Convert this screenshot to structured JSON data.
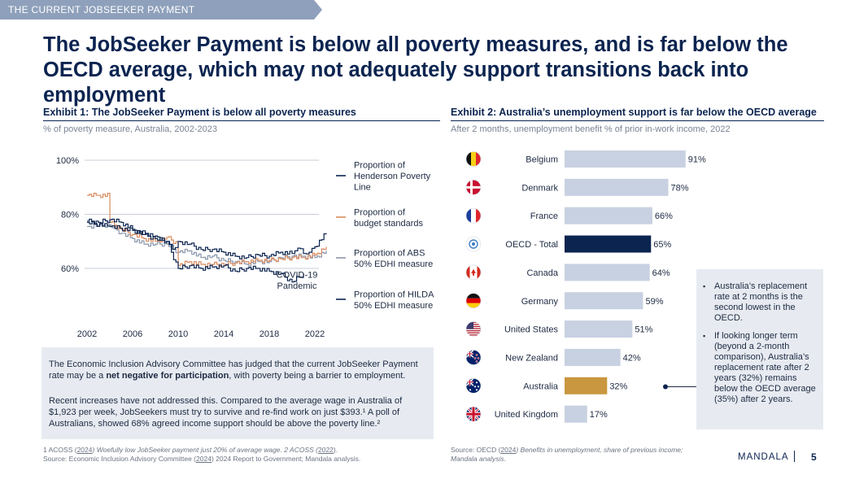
{
  "section_tag": "THE CURRENT JOBSEEKER PAYMENT",
  "headline": "The JobSeeker Payment is below all poverty measures, and is far below the OECD average, which may not adequately support transitions back into employment",
  "colors": {
    "navy": "#0b2450",
    "orange": "#d98a5e",
    "grey": "#8a97ab",
    "bar": "#c8d1e1",
    "highlight_oecd": "#0b2450",
    "highlight_aus": "#c9973f"
  },
  "exhibit1": {
    "title": "Exhibit 1: The JobSeeker Payment is below all poverty measures",
    "subtitle": "% of poverty measure, Australia, 2002-2023",
    "textbox": {
      "para1_pre": "The Economic Inclusion Advisory Committee has judged that the current JobSeeker Payment rate may be a ",
      "para1_bold": "net negative for participation",
      "para1_post": ", with poverty being a barrier to employment.",
      "para2": "Recent increases have not addressed this. Compared to the average wage in Australia of $1,923 per week, JobSeekers must try to survive and re-find work on just $393.¹ A poll of Australians, showed 68% agreed income support should be above the poverty line.²"
    },
    "footnote1_a": "1 ACOSS (",
    "footnote1_link1": "2024",
    "footnote1_b": ") Woefully low JobSeeker payment just 20% of average wage. 2 ACOSS (",
    "footnote1_link2": "2022",
    "footnote1_c": ").",
    "footnote2_a": "Source: Economic Inclusion Advisory Committee (",
    "footnote2_link": "2024",
    "footnote2_b": ") 2024 Report to Government; Mandala analysis."
  },
  "exhibit2": {
    "title": "Exhibit 2: Australia’s unemployment support is far below the OECD average",
    "subtitle": "After 2 months, unemployment benefit % of prior in-work income, 2022",
    "callout": [
      "Australia’s replacement rate at 2 months is the second lowest in the OECD.",
      "If looking longer term (beyond a 2-month comparison), Australia’s replacement rate after 2 years (32%) remains below the OECD average (35%) after 2 years."
    ],
    "footnote_a": "Source: OECD (",
    "footnote_link": "2024",
    "footnote_b": ") Benefits in unemployment, share of previous income; Mandala analysis."
  },
  "footer": {
    "brand": "MANDALA",
    "page": "5"
  },
  "chart_data": [
    {
      "type": "line",
      "title": "Exhibit 1: The JobSeeker Payment is below all poverty measures",
      "ylabel": "% of poverty measure",
      "xlim": [
        2002,
        2023
      ],
      "ylim": [
        50,
        100
      ],
      "yticks": [
        100,
        80,
        60
      ],
      "ytick_labels": [
        "100%",
        "80%",
        "60%"
      ],
      "xticks": [
        2002,
        2006,
        2010,
        2014,
        2018,
        2022
      ],
      "annotation": {
        "text_line1": "COVID-19",
        "text_line2": "Pandemic",
        "x": 2020,
        "y": 53
      },
      "series": [
        {
          "name": "Proportion of Henderson Poverty Line",
          "legend": [
            "Proportion of",
            "Henderson Poverty",
            "Line"
          ],
          "color": "#0b2450",
          "x": [
            2002,
            2003,
            2004,
            2005,
            2006,
            2007,
            2008,
            2009,
            2009.5,
            2010,
            2011,
            2012,
            2013,
            2014,
            2015,
            2016,
            2017,
            2018,
            2019,
            2020,
            2020.5,
            2021,
            2021.5,
            2022,
            2023
          ],
          "y": [
            77.5,
            77,
            78,
            77,
            74.5,
            72.5,
            71,
            70,
            67,
            70,
            69,
            67,
            67,
            66,
            64.5,
            64,
            65,
            64.5,
            66,
            65.5,
            67.5,
            65.5,
            66,
            68,
            73
          ]
        },
        {
          "name": "Proportion of budget standards",
          "legend": [
            "Proportion of",
            "budget standards"
          ],
          "color": "#d98a5e",
          "x": [
            2002,
            2003,
            2004,
            2004.01,
            2005,
            2006,
            2007,
            2008,
            2009,
            2010,
            2010.01,
            2011,
            2012,
            2013,
            2014,
            2015,
            2016,
            2017,
            2018,
            2019,
            2020,
            2021,
            2022,
            2023
          ],
          "y": [
            87,
            87,
            87,
            77,
            74.5,
            72.5,
            71,
            70,
            71.5,
            69,
            61,
            62.5,
            61.5,
            61.5,
            61.5,
            62,
            62.5,
            63,
            63,
            63.5,
            64,
            64,
            65,
            68
          ]
        },
        {
          "name": "Proportion of ABS 50% EDHI measure",
          "legend": [
            "Proportion of ABS",
            "50% EDHI measure"
          ],
          "color": "#8a97ab",
          "x": [
            2002,
            2003,
            2004,
            2005,
            2006,
            2007,
            2008,
            2009,
            2010,
            2011,
            2012,
            2013,
            2014,
            2015,
            2016,
            2017,
            2018,
            2019,
            2020,
            2021,
            2022,
            2023
          ],
          "y": [
            75.5,
            76,
            76,
            73,
            71,
            69,
            69,
            69,
            66,
            66.5,
            64,
            64.5,
            63,
            62.5,
            61.5,
            62.5,
            62.5,
            64,
            64.5,
            64.5,
            64,
            66.5
          ]
        },
        {
          "name": "Proportion of HILDA 50% EDHI measure",
          "legend": [
            "Proportion of HILDA",
            "50% EDHI measure"
          ],
          "color": "#0b2450",
          "x": [
            2002,
            2004,
            2006,
            2008,
            2009,
            2010,
            2011,
            2012,
            2013,
            2014,
            2015,
            2016,
            2017,
            2018,
            2019,
            2020,
            2021
          ],
          "y": [
            77,
            75.5,
            74,
            72,
            70,
            60,
            61,
            60,
            60.5,
            61,
            59,
            60,
            60,
            59,
            58,
            55,
            58
          ]
        }
      ]
    },
    {
      "type": "bar",
      "orientation": "horizontal",
      "title": "Exhibit 2: Australia’s unemployment support is far below the OECD average",
      "xlabel": "unemployment benefit % of prior in-work income",
      "xlim": [
        0,
        100
      ],
      "categories": [
        "Belgium",
        "Denmark",
        "France",
        "OECD - Total",
        "Canada",
        "Germany",
        "United States",
        "New Zealand",
        "Australia",
        "United Kingdom"
      ],
      "values": [
        91,
        78,
        66,
        65,
        64,
        59,
        51,
        42,
        32,
        17
      ],
      "value_labels": [
        "91%",
        "78%",
        "66%",
        "65%",
        "64%",
        "59%",
        "51%",
        "42%",
        "32%",
        "17%"
      ],
      "flags": [
        "belgium-flag-icon",
        "denmark-flag-icon",
        "france-flag-icon",
        "oecd-logo-icon",
        "canada-flag-icon",
        "germany-flag-icon",
        "usa-flag-icon",
        "new-zealand-flag-icon",
        "australia-flag-icon",
        "uk-flag-icon"
      ],
      "highlight": {
        "OECD - Total": "#0b2450",
        "Australia": "#c9973f"
      }
    }
  ]
}
